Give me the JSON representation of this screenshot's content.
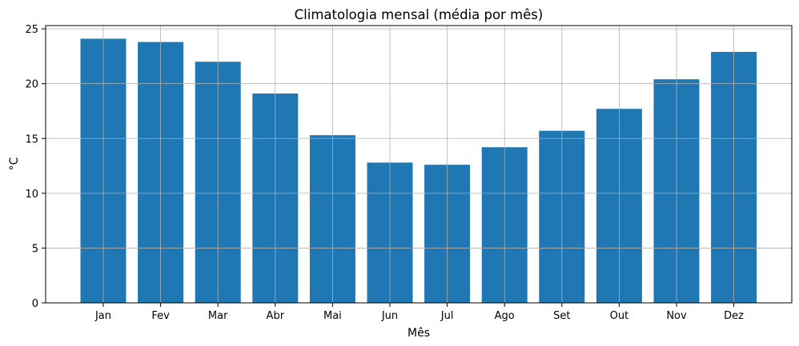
{
  "chart_data": {
    "type": "bar",
    "title": "Climatologia mensal (média por mês)",
    "xlabel": "Mês",
    "ylabel": "°C",
    "categories": [
      "Jan",
      "Fev",
      "Mar",
      "Abr",
      "Mai",
      "Jun",
      "Jul",
      "Ago",
      "Set",
      "Out",
      "Nov",
      "Dez"
    ],
    "values": [
      24.1,
      23.8,
      22.0,
      19.1,
      15.3,
      12.8,
      12.6,
      14.2,
      15.7,
      17.7,
      20.4,
      22.9
    ],
    "ylim": [
      0,
      25.3
    ],
    "yticks": [
      0,
      5,
      10,
      15,
      20,
      25
    ],
    "grid": true,
    "bar_color": "#1f77b4",
    "grid_color": "#b0b0b0"
  }
}
